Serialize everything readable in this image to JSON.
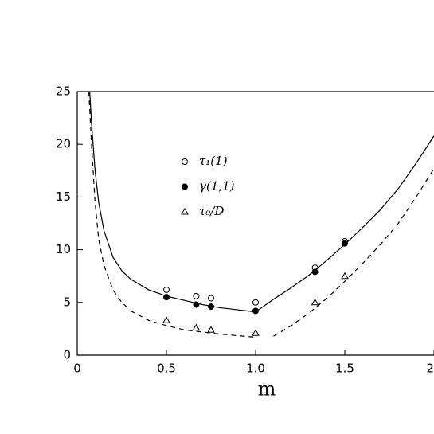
{
  "chart_data": {
    "type": "line",
    "xlabel": "m",
    "xlim": [
      0,
      2
    ],
    "ylim": [
      0,
      25
    ],
    "xticks": [
      0,
      0.5,
      {
        "value": 1,
        "label": "1.0"
      },
      1.5,
      2
    ],
    "yticks": [
      0,
      5,
      10,
      15,
      20,
      25
    ],
    "series": [
      {
        "name": "τ₁(1)",
        "marker": "open-circle",
        "color": "#000",
        "x": [
          0.5,
          0.667,
          0.75,
          1.0,
          1.333,
          1.5
        ],
        "values": [
          6.2,
          5.6,
          5.4,
          5.0,
          8.3,
          10.8
        ]
      },
      {
        "name": "γ(1,1)",
        "marker": "filled-circle",
        "color": "#000",
        "x": [
          0.5,
          0.667,
          0.75,
          1.0,
          1.333,
          1.5
        ],
        "values": [
          5.5,
          4.8,
          4.6,
          4.2,
          7.9,
          10.6
        ]
      },
      {
        "name": "τ₀/D",
        "marker": "open-triangle",
        "color": "#000",
        "x": [
          0.5,
          0.667,
          0.75,
          1.0,
          1.333,
          1.5
        ],
        "values": [
          3.3,
          2.6,
          2.4,
          2.1,
          5.0,
          7.5
        ]
      },
      {
        "line": "solid",
        "color": "#000",
        "x": [
          0.07,
          0.08,
          0.1,
          0.12,
          0.15,
          0.2,
          0.25,
          0.3,
          0.4,
          0.5,
          0.6,
          0.7,
          0.8,
          0.9,
          1.0,
          1.1,
          1.2,
          1.3,
          1.4,
          1.5,
          1.6,
          1.7,
          1.8,
          1.9,
          2.0
        ],
        "values": [
          25,
          22,
          17.5,
          14.5,
          11.8,
          9.3,
          8,
          7.2,
          6.2,
          5.6,
          5.2,
          4.8,
          4.5,
          4.3,
          4.1,
          5.3,
          6.4,
          7.6,
          9,
          10.5,
          12.1,
          13.8,
          15.8,
          18.2,
          20.8
        ]
      },
      {
        "line": "dashed",
        "color": "#000",
        "x": [
          0.065,
          0.08,
          0.1,
          0.12,
          0.15,
          0.2,
          0.25,
          0.3,
          0.4,
          0.5,
          0.6,
          0.7,
          0.8,
          0.9,
          1.0,
          1.05,
          1.1,
          1.2,
          1.3,
          1.4,
          1.5,
          1.6,
          1.7,
          1.8,
          1.9,
          2.0
        ],
        "values": [
          25,
          20,
          14.5,
          11,
          8.5,
          6.2,
          5,
          4.2,
          3.3,
          2.8,
          2.4,
          2.2,
          2.0,
          1.85,
          1.7,
          null,
          1.8,
          2.8,
          4,
          5.4,
          7,
          8.7,
          10.5,
          12.5,
          15,
          17.7
        ]
      }
    ]
  }
}
